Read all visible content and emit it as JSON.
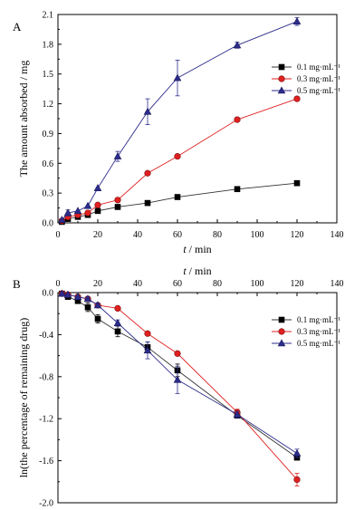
{
  "chart_data": [
    {
      "type": "line",
      "panel_label": "A",
      "xlabel_var": "t",
      "xlabel_unit": " / min",
      "ylabel": "The amount absorbed / mg",
      "xlim": [
        0,
        140
      ],
      "ylim": [
        0,
        2.1
      ],
      "xticks": [
        "0",
        "20",
        "40",
        "60",
        "80",
        "100",
        "120",
        "140"
      ],
      "yticks": [
        "0.0",
        "0.3",
        "0.6",
        "0.9",
        "1.2",
        "1.5",
        "1.8",
        "2.1"
      ],
      "legend_position": "right",
      "series": [
        {
          "name": "0.1 mg·mL⁻¹",
          "marker": "square",
          "color": "#000000",
          "x": [
            2,
            5,
            10,
            15,
            20,
            30,
            45,
            60,
            90,
            120
          ],
          "y": [
            0.01,
            0.04,
            0.06,
            0.08,
            0.12,
            0.16,
            0.2,
            0.26,
            0.34,
            0.4
          ],
          "err": [
            0,
            0,
            0,
            0,
            0,
            0,
            0,
            0,
            0,
            0
          ]
        },
        {
          "name": "0.3 mg·mL⁻¹",
          "marker": "circle",
          "color": "#e02020",
          "x": [
            2,
            5,
            10,
            15,
            20,
            30,
            45,
            60,
            90,
            120
          ],
          "y": [
            0.02,
            0.06,
            0.08,
            0.1,
            0.18,
            0.23,
            0.5,
            0.67,
            1.04,
            1.25
          ],
          "err": [
            0,
            0,
            0,
            0,
            0,
            0,
            0,
            0,
            0,
            0
          ]
        },
        {
          "name": "0.5 mg·mL⁻¹",
          "marker": "triangle",
          "color": "#2c2c8c",
          "x": [
            2,
            5,
            10,
            15,
            20,
            30,
            45,
            60,
            90,
            120
          ],
          "y": [
            0.03,
            0.1,
            0.12,
            0.17,
            0.35,
            0.67,
            1.12,
            1.46,
            1.79,
            2.03
          ],
          "err": [
            0,
            0.03,
            0,
            0,
            0,
            0.05,
            0.13,
            0.18,
            0.03,
            0.04
          ]
        }
      ]
    },
    {
      "type": "line",
      "panel_label": "B",
      "xlabel_var": "t",
      "xlabel_unit": " / min",
      "ylabel": "ln(the percentage of remaining drug)",
      "xlim": [
        0,
        140
      ],
      "ylim": [
        -2.0,
        0.0
      ],
      "xticks": [
        "0",
        "20",
        "40",
        "60",
        "80",
        "100",
        "120",
        "140"
      ],
      "yticks": [
        "0.0",
        "-0.4",
        "-0.8",
        "-1.2",
        "-1.6",
        "-2.0"
      ],
      "legend_position": "right",
      "series": [
        {
          "name": "0.1 mg·mL⁻¹",
          "marker": "square",
          "color": "#000000",
          "x": [
            2,
            5,
            10,
            15,
            20,
            30,
            45,
            60,
            90,
            120
          ],
          "y": [
            -0.01,
            -0.04,
            -0.08,
            -0.14,
            -0.25,
            -0.37,
            -0.52,
            -0.74,
            -1.17,
            -1.57
          ],
          "err": [
            0.01,
            0.02,
            0.02,
            0.04,
            0.04,
            0.05,
            0.05,
            0.06,
            0.02,
            0.02
          ]
        },
        {
          "name": "0.3 mg·mL⁻¹",
          "marker": "circle",
          "color": "#e02020",
          "x": [
            2,
            5,
            10,
            15,
            20,
            30,
            45,
            60,
            90,
            120
          ],
          "y": [
            -0.01,
            -0.02,
            -0.04,
            -0.06,
            -0.12,
            -0.15,
            -0.39,
            -0.58,
            -1.14,
            -1.78
          ],
          "err": [
            0,
            0,
            0,
            0,
            0,
            0,
            0,
            0,
            0.03,
            0.06
          ]
        },
        {
          "name": "0.5 mg·mL⁻¹",
          "marker": "triangle",
          "color": "#2c2c8c",
          "x": [
            2,
            5,
            10,
            15,
            20,
            30,
            45,
            60,
            90,
            120
          ],
          "y": [
            -0.01,
            -0.02,
            -0.04,
            -0.06,
            -0.12,
            -0.29,
            -0.55,
            -0.83,
            -1.16,
            -1.53
          ],
          "err": [
            0.01,
            0.01,
            0.01,
            0.02,
            0.02,
            0.03,
            0.08,
            0.13,
            0.03,
            0.04
          ]
        }
      ]
    }
  ]
}
